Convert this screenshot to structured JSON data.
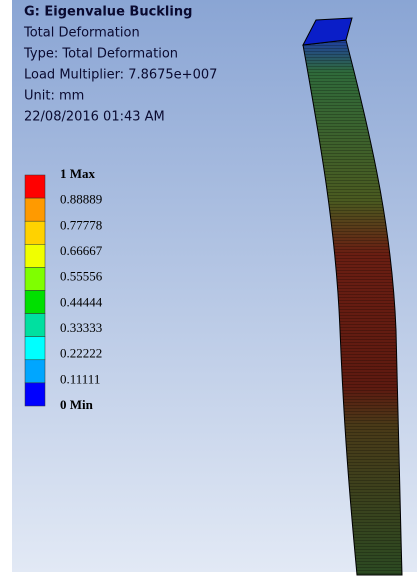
{
  "header": {
    "title": "G: Eigenvalue Buckling",
    "lines": [
      "Total Deformation",
      "Type: Total Deformation",
      "Load Multiplier: 7.8675e+007",
      "Unit: mm",
      "22/08/2016 01:43 AM"
    ]
  },
  "legend": {
    "labels": [
      "1 Max",
      "0.88889",
      "0.77778",
      "0.66667",
      "0.55556",
      "0.44444",
      "0.33333",
      "0.22222",
      "0.11111",
      "0 Min"
    ],
    "colors": [
      "#ff0000",
      "#ff9a00",
      "#ffd200",
      "#f0ff00",
      "#7fff00",
      "#00e000",
      "#00e0a0",
      "#00ffff",
      "#00a6ff",
      "#0000ff"
    ]
  }
}
